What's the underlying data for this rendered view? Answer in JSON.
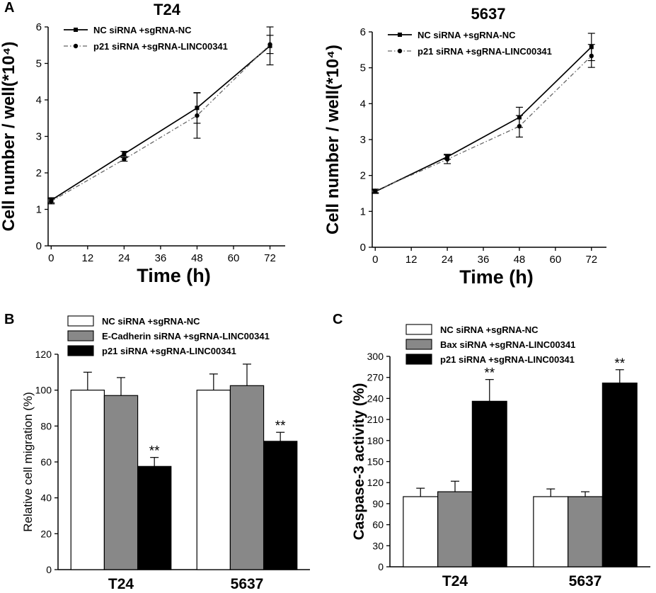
{
  "panels": {
    "A": "A",
    "B": "B",
    "C": "C"
  },
  "chart_data": [
    {
      "id": "A1",
      "type": "line",
      "title": "T24",
      "xlabel": "Time (h)",
      "ylabel": "Cell number / well(*10⁴)",
      "xlim": [
        -1,
        77
      ],
      "ylim": [
        0,
        6
      ],
      "xticks": [
        0,
        12,
        24,
        36,
        48,
        60,
        72
      ],
      "yticks": [
        0,
        1,
        2,
        3,
        4,
        5,
        6
      ],
      "x": [
        0,
        24,
        48,
        72
      ],
      "series": [
        {
          "name": "NC siRNA +sgRNA-NC",
          "values": [
            1.25,
            2.52,
            3.78,
            5.48
          ],
          "err": [
            0.07,
            0.07,
            0.42,
            0.52
          ],
          "style": "solid",
          "marker": "square"
        },
        {
          "name": "p21 siRNA +sgRNA-LINC00341",
          "values": [
            1.22,
            2.37,
            3.57,
            5.52
          ],
          "err": [
            0.07,
            0.05,
            0.62,
            0.25
          ],
          "style": "dashdot",
          "marker": "circle"
        }
      ]
    },
    {
      "id": "A2",
      "type": "line",
      "title": "5637",
      "xlabel": "Time (h)",
      "ylabel": "Cell number / well(*10⁴)",
      "xlim": [
        -1,
        77
      ],
      "ylim": [
        0,
        6
      ],
      "xticks": [
        0,
        12,
        24,
        36,
        48,
        60,
        72
      ],
      "yticks": [
        0,
        1,
        2,
        3,
        4,
        5,
        6
      ],
      "x": [
        0,
        24,
        48,
        72
      ],
      "series": [
        {
          "name": "NC siRNA +sgRNA-NC",
          "values": [
            1.55,
            2.52,
            3.62,
            5.58
          ],
          "err": [
            0.05,
            0.07,
            0.28,
            0.38
          ],
          "style": "solid",
          "marker": "square"
        },
        {
          "name": "p21 siRNA +sgRNA-LINC00341",
          "values": [
            1.57,
            2.45,
            3.37,
            5.33
          ],
          "err": [
            0.05,
            0.12,
            0.3,
            0.32
          ],
          "style": "dashdot",
          "marker": "circle"
        }
      ]
    },
    {
      "id": "B",
      "type": "bar",
      "title": "",
      "xlabel": "",
      "ylabel": "Relative cell migration (%)",
      "ylim": [
        0,
        120
      ],
      "yticks": [
        0,
        20,
        40,
        60,
        80,
        100,
        120
      ],
      "categories": [
        "T24",
        "5637"
      ],
      "series": [
        {
          "name": "NC siRNA +sgRNA-NC",
          "values": [
            100,
            100
          ],
          "err": [
            10,
            9
          ],
          "color": "#ffffff"
        },
        {
          "name": "E-Cadherin siRNA +sgRNA-LINC00341",
          "values": [
            97,
            102.5
          ],
          "err": [
            10,
            12
          ],
          "color": "#888888"
        },
        {
          "name": "p21 siRNA +sgRNA-LINC00341",
          "values": [
            57.5,
            71.5
          ],
          "err": [
            5,
            5
          ],
          "color": "#000000"
        }
      ],
      "annotations": [
        {
          "category": "T24",
          "series": 2,
          "text": "**"
        },
        {
          "category": "5637",
          "series": 2,
          "text": "**"
        }
      ]
    },
    {
      "id": "C",
      "type": "bar",
      "title": "",
      "xlabel": "",
      "ylabel": "Caspase-3 activity (%)",
      "ylim": [
        0,
        300
      ],
      "yticks": [
        0,
        30,
        60,
        90,
        120,
        150,
        180,
        210,
        240,
        270,
        300
      ],
      "categories": [
        "T24",
        "5637"
      ],
      "series": [
        {
          "name": "NC siRNA +sgRNA-NC",
          "values": [
            100,
            100
          ],
          "err": [
            12,
            11
          ],
          "color": "#ffffff"
        },
        {
          "name": "Bax siRNA +sgRNA-LINC00341",
          "values": [
            107,
            100
          ],
          "err": [
            15,
            7
          ],
          "color": "#888888"
        },
        {
          "name": "p21 siRNA +sgRNA-LINC00341",
          "values": [
            236,
            262
          ],
          "err": [
            31,
            19
          ],
          "color": "#000000"
        }
      ],
      "annotations": [
        {
          "category": "T24",
          "series": 2,
          "text": "**"
        },
        {
          "category": "5637",
          "series": 2,
          "text": "**"
        }
      ]
    }
  ]
}
